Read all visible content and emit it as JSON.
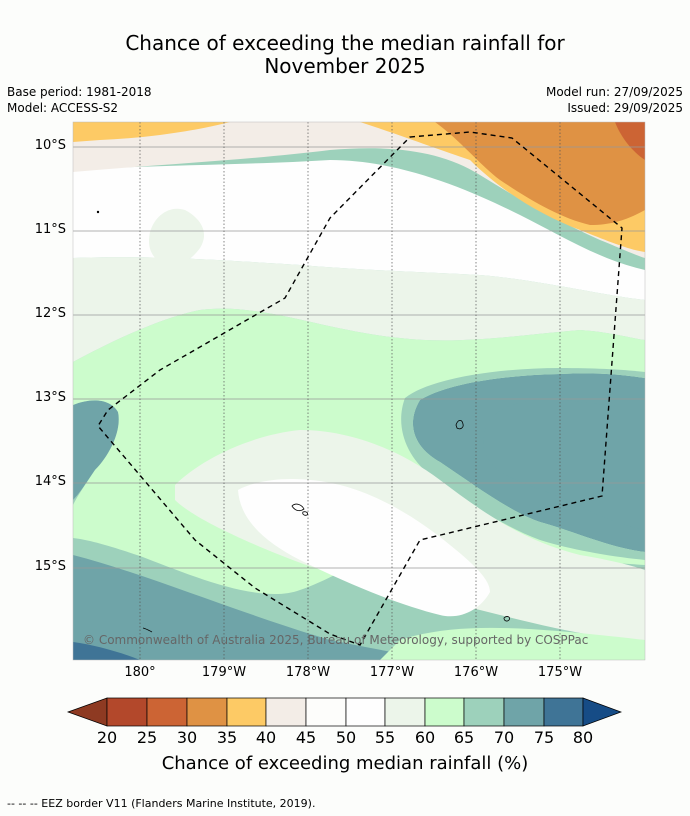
{
  "title": {
    "line1": "Chance of exceeding the median rainfall for",
    "line2": "November 2025"
  },
  "meta": {
    "base_period": "Base period: 1981-2018",
    "model": "Model: ACCESS-S2",
    "model_run": "Model run: 27/09/2025",
    "issued": "Issued: 29/09/2025"
  },
  "axes": {
    "lat_labels": [
      "10°S",
      "11°S",
      "12°S",
      "13°S",
      "14°S",
      "15°S"
    ],
    "lon_labels": [
      "180°",
      "179°W",
      "178°W",
      "177°W",
      "176°W",
      "175°W"
    ]
  },
  "copyright": "© Commonwealth of Australia 2025, Bureau of Meteorology, supported by COSPPac",
  "colorbar": {
    "ticks": [
      "20",
      "25",
      "30",
      "35",
      "40",
      "45",
      "50",
      "55",
      "60",
      "65",
      "70",
      "75",
      "80"
    ],
    "colors": {
      "below20": "#8e3a22",
      "c20_25": "#b3482b",
      "c25_30": "#cc6434",
      "c30_35": "#df9244",
      "c35_40": "#fdca65",
      "c40_45": "#f3ede7",
      "c45_50": "#fdfdfb",
      "c50_55": "#fefefe",
      "c55_60": "#ecf5ea",
      "c60_65": "#ccfccc",
      "c65_70": "#9dd1bb",
      "c70_75": "#6fa4a8",
      "c75_80": "#3f7496",
      "above80": "#164c86"
    },
    "label": "Chance of exceeding median rainfall (%)"
  },
  "footnote": "--  --  -- EEZ border V11 (Flanders Marine Institute, 2019)."
}
